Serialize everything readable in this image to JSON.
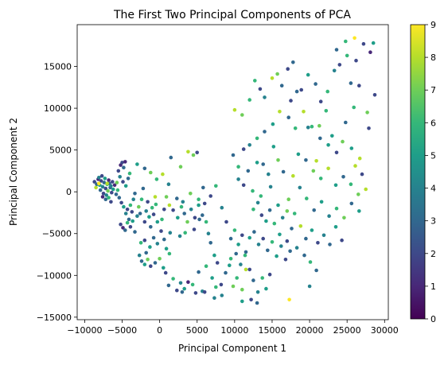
{
  "chart_data": {
    "type": "scatter",
    "title": "The First Two Principal Components of PCA",
    "xlabel": "Principal Component 1",
    "ylabel": "Principal Component 2",
    "xlim": [
      -11000,
      30500
    ],
    "ylim": [
      -15300,
      20000
    ],
    "xticks": [
      -10000,
      -5000,
      0,
      5000,
      10000,
      15000,
      20000,
      25000,
      30000
    ],
    "xtick_labels": [
      "−10000",
      "−5000",
      "0",
      "5000",
      "10000",
      "15000",
      "20000",
      "25000",
      "30000"
    ],
    "yticks": [
      -15000,
      -10000,
      -5000,
      0,
      5000,
      10000,
      15000
    ],
    "ytick_labels": [
      "−15000",
      "−10000",
      "−5000",
      "0",
      "5000",
      "10000",
      "15000"
    ],
    "colorbar": {
      "colormap": "viridis",
      "range": [
        0,
        9
      ],
      "ticks": [
        "0",
        "1",
        "2",
        "3",
        "4",
        "5",
        "6",
        "7",
        "8",
        "9"
      ]
    },
    "grid": false,
    "legend": "none",
    "points": [
      [
        -8700,
        1200,
        2
      ],
      [
        -8400,
        900,
        3
      ],
      [
        -8200,
        1500,
        1
      ],
      [
        -8000,
        800,
        5
      ],
      [
        -7800,
        1300,
        2
      ],
      [
        -7600,
        600,
        4
      ],
      [
        -7400,
        1100,
        3
      ],
      [
        -7200,
        400,
        2
      ],
      [
        -7000,
        900,
        6
      ],
      [
        -6800,
        1400,
        1
      ],
      [
        -7900,
        200,
        3
      ],
      [
        -7500,
        -200,
        2
      ],
      [
        -7100,
        -400,
        4
      ],
      [
        -6900,
        100,
        7
      ],
      [
        -6600,
        500,
        3
      ],
      [
        -6400,
        -100,
        2
      ],
      [
        -6200,
        300,
        5
      ],
      [
        -6000,
        800,
        1
      ],
      [
        -5800,
        -300,
        3
      ],
      [
        -5600,
        200,
        6
      ],
      [
        -8500,
        500,
        8
      ],
      [
        -8100,
        1700,
        4
      ],
      [
        -7700,
        1900,
        2
      ],
      [
        -7300,
        1600,
        5
      ],
      [
        -6700,
        1000,
        3
      ],
      [
        -6300,
        1200,
        2
      ],
      [
        -7600,
        -600,
        1
      ],
      [
        -7200,
        -900,
        3
      ],
      [
        -6800,
        -700,
        6
      ],
      [
        -6500,
        -1200,
        2
      ],
      [
        -5500,
        2500,
        2
      ],
      [
        -5200,
        3200,
        1
      ],
      [
        -5000,
        3500,
        2
      ],
      [
        -4800,
        2900,
        3
      ],
      [
        -4600,
        3600,
        1
      ],
      [
        -5300,
        1800,
        4
      ],
      [
        -4900,
        1200,
        2
      ],
      [
        -4500,
        700,
        5
      ],
      [
        -4200,
        1600,
        3
      ],
      [
        -4000,
        2200,
        6
      ],
      [
        -5400,
        -700,
        3
      ],
      [
        -5100,
        -1300,
        2
      ],
      [
        -4800,
        -1800,
        5
      ],
      [
        -4500,
        -2600,
        4
      ],
      [
        -4300,
        -2100,
        2
      ],
      [
        -4100,
        -3300,
        3
      ],
      [
        -3900,
        -1600,
        6
      ],
      [
        -3700,
        -2400,
        2
      ],
      [
        -3500,
        -900,
        4
      ],
      [
        -3300,
        -200,
        3
      ],
      [
        -5200,
        -3900,
        2
      ],
      [
        -4900,
        -4300,
        1
      ],
      [
        -4600,
        -4600,
        3
      ],
      [
        -4300,
        -3700,
        6
      ],
      [
        -3900,
        -4200,
        2
      ],
      [
        -3600,
        -3500,
        5
      ],
      [
        -3300,
        -4800,
        3
      ],
      [
        -3000,
        -2900,
        4
      ],
      [
        -2800,
        -1800,
        7
      ],
      [
        -2600,
        -2600,
        3
      ],
      [
        -2400,
        -900,
        6
      ],
      [
        -2200,
        400,
        3
      ],
      [
        -2000,
        -3600,
        2
      ],
      [
        -1800,
        -2300,
        4
      ],
      [
        -1600,
        -1200,
        2
      ],
      [
        -1400,
        -3000,
        5
      ],
      [
        -1200,
        -4200,
        3
      ],
      [
        -1000,
        -1900,
        6
      ],
      [
        -800,
        -2700,
        2
      ],
      [
        -600,
        -600,
        8
      ],
      [
        -3000,
        3300,
        5
      ],
      [
        -2000,
        2800,
        3
      ],
      [
        -1200,
        2300,
        7
      ],
      [
        -400,
        1500,
        6
      ],
      [
        400,
        2100,
        8
      ],
      [
        1200,
        900,
        4
      ],
      [
        1500,
        4100,
        3
      ],
      [
        2800,
        3000,
        7
      ],
      [
        3800,
        4800,
        8
      ],
      [
        4500,
        4400,
        7
      ],
      [
        5000,
        4700,
        2
      ],
      [
        -2500,
        -6100,
        6
      ],
      [
        -2000,
        -5800,
        2
      ],
      [
        -1800,
        -7300,
        3
      ],
      [
        -1300,
        -6600,
        5
      ],
      [
        -800,
        -5500,
        3
      ],
      [
        -300,
        -6200,
        4
      ],
      [
        200,
        -4700,
        2
      ],
      [
        600,
        -5700,
        3
      ],
      [
        900,
        -6800,
        5
      ],
      [
        1400,
        -4900,
        4
      ],
      [
        -2700,
        -7600,
        4
      ],
      [
        -2400,
        -8300,
        3
      ],
      [
        -2000,
        -8700,
        5
      ],
      [
        -1600,
        -8100,
        7
      ],
      [
        -1200,
        -8900,
        2
      ],
      [
        -600,
        -8500,
        3
      ],
      [
        0,
        -8000,
        7
      ],
      [
        500,
        -9100,
        5
      ],
      [
        800,
        -9700,
        2
      ],
      [
        1300,
        -7400,
        6
      ],
      [
        1800,
        -10400,
        6
      ],
      [
        1200,
        -11200,
        3
      ],
      [
        2300,
        -11800,
        2
      ],
      [
        2800,
        -10900,
        4
      ],
      [
        3300,
        -11600,
        5
      ],
      [
        3800,
        -10800,
        1
      ],
      [
        4400,
        -11100,
        6
      ],
      [
        4800,
        -12100,
        2
      ],
      [
        5200,
        -9600,
        3
      ],
      [
        5700,
        -11900,
        4
      ],
      [
        1800,
        -2200,
        2
      ],
      [
        2400,
        -3100,
        5
      ],
      [
        2900,
        -1800,
        6
      ],
      [
        3300,
        -2600,
        3
      ],
      [
        3700,
        -3600,
        7
      ],
      [
        4200,
        -2100,
        4
      ],
      [
        4700,
        -3100,
        2
      ],
      [
        5200,
        -1600,
        5
      ],
      [
        5700,
        -2800,
        3
      ],
      [
        6200,
        -3600,
        6
      ],
      [
        2300,
        -800,
        3
      ],
      [
        3100,
        -1200,
        4
      ],
      [
        4100,
        -200,
        7
      ],
      [
        5200,
        -900,
        6
      ],
      [
        6000,
        -1400,
        2
      ],
      [
        6500,
        -5000,
        4
      ],
      [
        6800,
        -6100,
        3
      ],
      [
        7300,
        -7600,
        5
      ],
      [
        7700,
        -8500,
        2
      ],
      [
        6200,
        -8900,
        6
      ],
      [
        7000,
        -10300,
        5
      ],
      [
        7500,
        -11400,
        6
      ],
      [
        7300,
        -12700,
        4
      ],
      [
        8200,
        -11100,
        2
      ],
      [
        8800,
        -9700,
        3
      ],
      [
        9300,
        -8800,
        5
      ],
      [
        9800,
        -11300,
        7
      ],
      [
        10300,
        -10300,
        6
      ],
      [
        11000,
        -11700,
        7
      ],
      [
        11500,
        -9300,
        8
      ],
      [
        5800,
        500,
        3
      ],
      [
        6800,
        -500,
        2
      ],
      [
        7500,
        700,
        6
      ],
      [
        8300,
        -1900,
        4
      ],
      [
        8900,
        -3600,
        2
      ],
      [
        9500,
        -5600,
        3
      ],
      [
        10000,
        -4600,
        6
      ],
      [
        10500,
        -6300,
        5
      ],
      [
        11000,
        -5200,
        2
      ],
      [
        11500,
        -7200,
        3
      ],
      [
        9500,
        -8000,
        6
      ],
      [
        10200,
        -7400,
        3
      ],
      [
        10800,
        -8700,
        4
      ],
      [
        11400,
        -7600,
        6
      ],
      [
        12000,
        -9300,
        2
      ],
      [
        12500,
        -10600,
        3
      ],
      [
        13100,
        -12000,
        4
      ],
      [
        13700,
        -10300,
        6
      ],
      [
        14200,
        -11600,
        5
      ],
      [
        14700,
        -9900,
        2
      ],
      [
        12000,
        -5500,
        5
      ],
      [
        12600,
        -4800,
        3
      ],
      [
        13200,
        -6300,
        4
      ],
      [
        13800,
        -5600,
        2
      ],
      [
        14400,
        -7000,
        3
      ],
      [
        15000,
        -6000,
        6
      ],
      [
        15600,
        -7700,
        5
      ],
      [
        16200,
        -6500,
        4
      ],
      [
        16800,
        -8100,
        2
      ],
      [
        17400,
        -7100,
        3
      ],
      [
        12500,
        -2100,
        6
      ],
      [
        13100,
        -1300,
        4
      ],
      [
        13600,
        -2800,
        2
      ],
      [
        14200,
        -3500,
        5
      ],
      [
        14700,
        -2200,
        3
      ],
      [
        15300,
        -3800,
        6
      ],
      [
        15800,
        -1600,
        5
      ],
      [
        16400,
        -3100,
        4
      ],
      [
        17000,
        -2300,
        7
      ],
      [
        17600,
        -4400,
        3
      ],
      [
        10500,
        1500,
        4
      ],
      [
        11200,
        800,
        2
      ],
      [
        11800,
        2500,
        3
      ],
      [
        12400,
        100,
        6
      ],
      [
        13000,
        3500,
        5
      ],
      [
        13800,
        3300,
        3
      ],
      [
        14500,
        2100,
        4
      ],
      [
        15200,
        5400,
        5
      ],
      [
        15800,
        3800,
        7
      ],
      [
        16500,
        2400,
        3
      ],
      [
        9800,
        4400,
        3
      ],
      [
        10500,
        3000,
        6
      ],
      [
        11200,
        5100,
        2
      ],
      [
        12000,
        5600,
        4
      ],
      [
        13000,
        6400,
        6
      ],
      [
        14000,
        7200,
        3
      ],
      [
        15100,
        8100,
        5
      ],
      [
        16000,
        9600,
        8
      ],
      [
        17200,
        8900,
        3
      ],
      [
        18100,
        7600,
        6
      ],
      [
        10000,
        9800,
        8
      ],
      [
        11000,
        9200,
        7
      ],
      [
        12000,
        11000,
        6
      ],
      [
        12700,
        13300,
        6
      ],
      [
        13400,
        12300,
        2
      ],
      [
        14000,
        11300,
        4
      ],
      [
        15000,
        13600,
        8
      ],
      [
        15700,
        14100,
        7
      ],
      [
        16300,
        12700,
        3
      ],
      [
        17100,
        14700,
        2
      ],
      [
        17800,
        15500,
        3
      ],
      [
        18900,
        12200,
        2
      ],
      [
        19800,
        14000,
        5
      ],
      [
        20800,
        12900,
        3
      ],
      [
        21500,
        10800,
        2
      ],
      [
        22400,
        12000,
        6
      ],
      [
        23300,
        14500,
        4
      ],
      [
        24000,
        15200,
        2
      ],
      [
        25000,
        16300,
        6
      ],
      [
        26200,
        15700,
        2
      ],
      [
        23600,
        17000,
        3
      ],
      [
        24800,
        18000,
        6
      ],
      [
        26000,
        18400,
        9
      ],
      [
        27200,
        17700,
        2
      ],
      [
        28100,
        16700,
        1
      ],
      [
        28500,
        17800,
        5
      ],
      [
        25500,
        13000,
        3
      ],
      [
        26600,
        12700,
        2
      ],
      [
        27700,
        9500,
        7
      ],
      [
        28700,
        11600,
        2
      ],
      [
        17500,
        10900,
        2
      ],
      [
        18300,
        12000,
        3
      ],
      [
        19200,
        9600,
        8
      ],
      [
        20300,
        7800,
        6
      ],
      [
        21400,
        6400,
        3
      ],
      [
        22500,
        5600,
        5
      ],
      [
        23600,
        4700,
        2
      ],
      [
        24400,
        6000,
        7
      ],
      [
        25600,
        5200,
        5
      ],
      [
        26700,
        4000,
        8
      ],
      [
        18500,
        4500,
        5
      ],
      [
        19500,
        3800,
        3
      ],
      [
        20500,
        2500,
        7
      ],
      [
        21500,
        1600,
        6
      ],
      [
        22500,
        2800,
        8
      ],
      [
        23500,
        800,
        5
      ],
      [
        24500,
        1800,
        3
      ],
      [
        25500,
        900,
        6
      ],
      [
        26500,
        -300,
        7
      ],
      [
        27500,
        300,
        8
      ],
      [
        17800,
        1900,
        8
      ],
      [
        18700,
        500,
        4
      ],
      [
        19600,
        -800,
        6
      ],
      [
        20600,
        -2200,
        3
      ],
      [
        21600,
        -1200,
        5
      ],
      [
        22600,
        -2900,
        4
      ],
      [
        23600,
        -2000,
        6
      ],
      [
        24600,
        -3100,
        7
      ],
      [
        25600,
        -1400,
        3
      ],
      [
        26600,
        -2300,
        5
      ],
      [
        17200,
        -900,
        7
      ],
      [
        18000,
        -2600,
        6
      ],
      [
        18800,
        -4100,
        8
      ],
      [
        19500,
        -5600,
        3
      ],
      [
        20300,
        -4600,
        5
      ],
      [
        21100,
        -6100,
        2
      ],
      [
        21900,
        -5200,
        4
      ],
      [
        22700,
        -6300,
        3
      ],
      [
        23500,
        -4200,
        5
      ],
      [
        24300,
        -5800,
        2
      ],
      [
        13500,
        -500,
        6
      ],
      [
        14800,
        600,
        4
      ],
      [
        16000,
        -5100,
        5
      ],
      [
        17000,
        -5900,
        2
      ],
      [
        18300,
        -6700,
        4
      ],
      [
        19300,
        -7600,
        3
      ],
      [
        20100,
        -8400,
        6
      ],
      [
        20900,
        -9400,
        3
      ],
      [
        20000,
        -11300,
        4
      ],
      [
        17300,
        -12900,
        9
      ],
      [
        11000,
        -13100,
        5
      ],
      [
        12200,
        -12900,
        2
      ],
      [
        13000,
        -13300,
        3
      ],
      [
        8300,
        -12400,
        4
      ],
      [
        6000,
        -12000,
        2
      ],
      [
        3000,
        -12000,
        3
      ],
      [
        -8100,
        1000,
        9
      ],
      [
        -7000,
        1000,
        8
      ],
      [
        -6500,
        700,
        4
      ],
      [
        -5700,
        1100,
        7
      ],
      [
        4600,
        -4500,
        2
      ],
      [
        5300,
        -3300,
        3
      ],
      [
        3400,
        -4900,
        6
      ],
      [
        2700,
        -5300,
        4
      ],
      [
        600,
        -2100,
        2
      ],
      [
        -300,
        -3600,
        5
      ],
      [
        300,
        -3300,
        6
      ],
      [
        1300,
        -1600,
        8
      ],
      [
        900,
        -600,
        7
      ],
      [
        -500,
        -1500,
        6
      ],
      [
        24800,
        8300,
        3
      ],
      [
        23000,
        6700,
        5
      ],
      [
        27900,
        7600,
        2
      ],
      [
        22200,
        9700,
        6
      ],
      [
        19800,
        7700,
        4
      ],
      [
        21300,
        7900,
        7
      ],
      [
        20900,
        3700,
        8
      ],
      [
        25900,
        10100,
        6
      ],
      [
        27000,
        2100,
        2
      ],
      [
        26100,
        3100,
        8
      ]
    ]
  }
}
